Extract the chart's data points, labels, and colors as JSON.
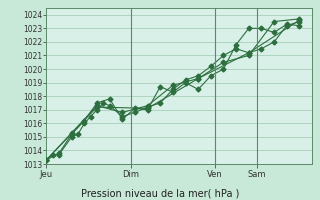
{
  "xlabel": "Pression niveau de la mer( hPa )",
  "ylim": [
    1013,
    1024.5
  ],
  "yticks": [
    1013,
    1014,
    1015,
    1016,
    1017,
    1018,
    1019,
    1020,
    1021,
    1022,
    1023,
    1024
  ],
  "background_color": "#c8e8d8",
  "plot_bg_color": "#d8f0e8",
  "grid_color": "#a0c8b0",
  "line_color": "#2d6e3e",
  "vline_color": "#5a8a6a",
  "day_labels": [
    "Jeu",
    "Dim",
    "Ven",
    "Sam"
  ],
  "day_positions": [
    0.0,
    0.333,
    0.667,
    0.833
  ],
  "series1_x": [
    0.0,
    0.025,
    0.05,
    0.1,
    0.125,
    0.15,
    0.175,
    0.2,
    0.225,
    0.25,
    0.3,
    0.35,
    0.4,
    0.45,
    0.5,
    0.55,
    0.6,
    0.65,
    0.7,
    0.75,
    0.8,
    0.85,
    0.9,
    0.95,
    1.0
  ],
  "series1_y": [
    1013.3,
    1013.7,
    1013.7,
    1015.0,
    1015.2,
    1016.0,
    1016.5,
    1017.0,
    1017.5,
    1017.3,
    1016.5,
    1016.8,
    1017.2,
    1017.5,
    1018.5,
    1019.2,
    1019.5,
    1020.2,
    1021.0,
    1021.5,
    1021.2,
    1021.5,
    1022.0,
    1023.2,
    1023.5
  ],
  "series2_x": [
    0.0,
    0.05,
    0.1,
    0.15,
    0.2,
    0.25,
    0.3,
    0.35,
    0.4,
    0.45,
    0.5,
    0.55,
    0.6,
    0.65,
    0.7,
    0.75,
    0.8,
    0.85,
    0.9,
    0.95,
    1.0
  ],
  "series2_y": [
    1013.3,
    1013.8,
    1015.2,
    1016.2,
    1017.5,
    1017.8,
    1016.3,
    1017.1,
    1017.0,
    1018.7,
    1018.3,
    1019.0,
    1018.5,
    1019.5,
    1020.0,
    1021.8,
    1023.0,
    1023.0,
    1022.7,
    1023.3,
    1023.2
  ],
  "series3_x": [
    0.0,
    0.1,
    0.2,
    0.3,
    0.4,
    0.5,
    0.6,
    0.7,
    0.8,
    0.9,
    1.0
  ],
  "series3_y": [
    1013.3,
    1015.3,
    1017.3,
    1016.8,
    1017.3,
    1018.8,
    1019.3,
    1020.5,
    1021.0,
    1023.5,
    1023.7
  ],
  "series4_x": [
    0.0,
    0.2,
    0.4,
    0.6,
    0.8,
    1.0
  ],
  "series4_y": [
    1013.3,
    1017.2,
    1017.1,
    1019.3,
    1021.2,
    1023.6
  ],
  "xlim": [
    0.0,
    1.05
  ]
}
